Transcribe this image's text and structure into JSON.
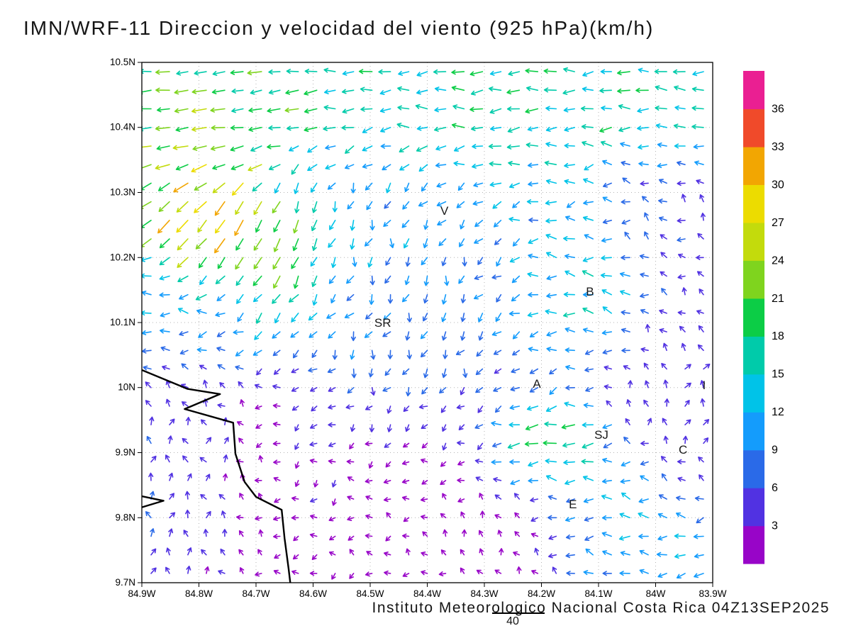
{
  "title": "IMN/WRF-11 Direccion y velocidad del viento (925 hPa)(km/h)",
  "footer": {
    "credit": "Instituto Meteorologico Nacional Costa Rica 04Z13SEP2025",
    "ref_vector_label": "40"
  },
  "chart_data": {
    "type": "vector-field",
    "x_tick_labels": [
      "84.9W",
      "84.8W",
      "84.7W",
      "84.6W",
      "84.5W",
      "84.4W",
      "84.3W",
      "84.2W",
      "84.1W",
      "84W",
      "83.9W"
    ],
    "y_tick_labels": [
      "10.5N",
      "10.4N",
      "10.3N",
      "10.2N",
      "10.1N",
      "10N",
      "9.9N",
      "9.8N",
      "9.7N"
    ],
    "lon_range": [
      -84.9,
      -83.9
    ],
    "lat_range": [
      9.7,
      10.5
    ],
    "colorbar": {
      "ticks": [
        3,
        6,
        9,
        12,
        15,
        18,
        21,
        24,
        27,
        30,
        33,
        36
      ],
      "colors": [
        "#9805c8",
        "#5132e2",
        "#2a6ae8",
        "#149cfc",
        "#00c3e8",
        "#00cbaa",
        "#0ccd46",
        "#7fd41e",
        "#c3db0c",
        "#ecdc00",
        "#f2a602",
        "#f04a2a",
        "#ea1f92"
      ]
    },
    "city_labels": [
      {
        "label": "V",
        "lon": -84.37,
        "lat": 10.272
      },
      {
        "label": "SR",
        "lon": -84.478,
        "lat": 10.1
      },
      {
        "label": "B",
        "lon": -84.115,
        "lat": 10.148
      },
      {
        "label": "A",
        "lon": -84.208,
        "lat": 10.006
      },
      {
        "label": "SJ",
        "lon": -84.095,
        "lat": 9.928
      },
      {
        "label": "C",
        "lon": -83.952,
        "lat": 9.905
      },
      {
        "label": "E",
        "lon": -84.145,
        "lat": 9.821
      },
      {
        "label": "I",
        "lon": -83.915,
        "lat": 10.004
      }
    ],
    "coastline": [
      [
        [
          -84.9,
          10.027
        ],
        [
          -84.82,
          9.998
        ],
        [
          -84.763,
          9.99
        ],
        [
          -84.825,
          9.967
        ],
        [
          -84.74,
          9.946
        ],
        [
          -84.736,
          9.898
        ],
        [
          -84.72,
          9.855
        ],
        [
          -84.7,
          9.832
        ],
        [
          -84.655,
          9.812
        ],
        [
          -84.65,
          9.768
        ],
        [
          -84.643,
          9.722
        ],
        [
          -84.64,
          9.7
        ]
      ],
      [
        [
          -84.9,
          9.833
        ],
        [
          -84.862,
          9.826
        ],
        [
          -84.9,
          9.816
        ]
      ]
    ],
    "wind_field": {
      "cols": 31,
      "rows": 28,
      "base_dir": 235,
      "base_speed": 4,
      "base_weight": 0.18,
      "regions": [
        {
          "lon": -84.4,
          "lat": 10.47,
          "sx": 1.5,
          "sy": 0.055,
          "dir": 182,
          "speed": 18
        },
        {
          "lon": -84.4,
          "lat": 10.41,
          "sx": 1.5,
          "sy": 0.04,
          "dir": 178,
          "speed": 18
        },
        {
          "lon": -84.85,
          "lat": 10.46,
          "sx": 0.18,
          "sy": 0.06,
          "dir": 187,
          "speed": 26
        },
        {
          "lon": -84.83,
          "lat": 10.36,
          "sx": 0.12,
          "sy": 0.05,
          "dir": 198,
          "speed": 30
        },
        {
          "lon": -84.3,
          "lat": 10.33,
          "sx": 0.15,
          "sy": 0.05,
          "dir": 188,
          "speed": 16
        },
        {
          "lon": -84.78,
          "lat": 10.26,
          "sx": 0.07,
          "sy": 0.055,
          "dir": 228,
          "speed": 36
        },
        {
          "lon": -84.67,
          "lat": 10.21,
          "sx": 0.07,
          "sy": 0.07,
          "dir": 252,
          "speed": 30
        },
        {
          "lon": -84.55,
          "lat": 10.28,
          "sx": 0.09,
          "sy": 0.07,
          "dir": 262,
          "speed": 13
        },
        {
          "lon": -84.38,
          "lat": 10.18,
          "sx": 0.13,
          "sy": 0.1,
          "dir": 258,
          "speed": 11
        },
        {
          "lon": -84.16,
          "lat": 10.16,
          "sx": 0.09,
          "sy": 0.07,
          "dir": 168,
          "speed": 20
        },
        {
          "lon": -84.8,
          "lat": 10.11,
          "sx": 0.14,
          "sy": 0.06,
          "dir": 181,
          "speed": 15
        },
        {
          "lon": -84.45,
          "lat": 10.08,
          "sx": 0.1,
          "sy": 0.07,
          "dir": 250,
          "speed": 10
        },
        {
          "lon": -83.95,
          "lat": 10.27,
          "sx": 0.09,
          "sy": 0.09,
          "dir": 135,
          "speed": 6
        },
        {
          "lon": -84.85,
          "lat": 9.86,
          "sx": 0.1,
          "sy": 0.13,
          "dir": 82,
          "speed": 9
        },
        {
          "lon": -84.5,
          "lat": 9.85,
          "sx": 0.22,
          "sy": 0.13,
          "dir": 210,
          "speed": 3.5
        },
        {
          "lon": -84.19,
          "lat": 9.91,
          "sx": 0.06,
          "sy": 0.045,
          "dir": 184,
          "speed": 30
        },
        {
          "lon": -84.07,
          "lat": 9.79,
          "sx": 0.07,
          "sy": 0.07,
          "dir": 174,
          "speed": 19
        },
        {
          "lon": -83.93,
          "lat": 9.73,
          "sx": 0.08,
          "sy": 0.05,
          "dir": 184,
          "speed": 14
        },
        {
          "lon": -84.3,
          "lat": 9.76,
          "sx": 0.18,
          "sy": 0.09,
          "dir": 95,
          "speed": 4
        },
        {
          "lon": -83.94,
          "lat": 10.0,
          "sx": 0.08,
          "sy": 0.08,
          "dir": 80,
          "speed": 7
        }
      ]
    }
  }
}
